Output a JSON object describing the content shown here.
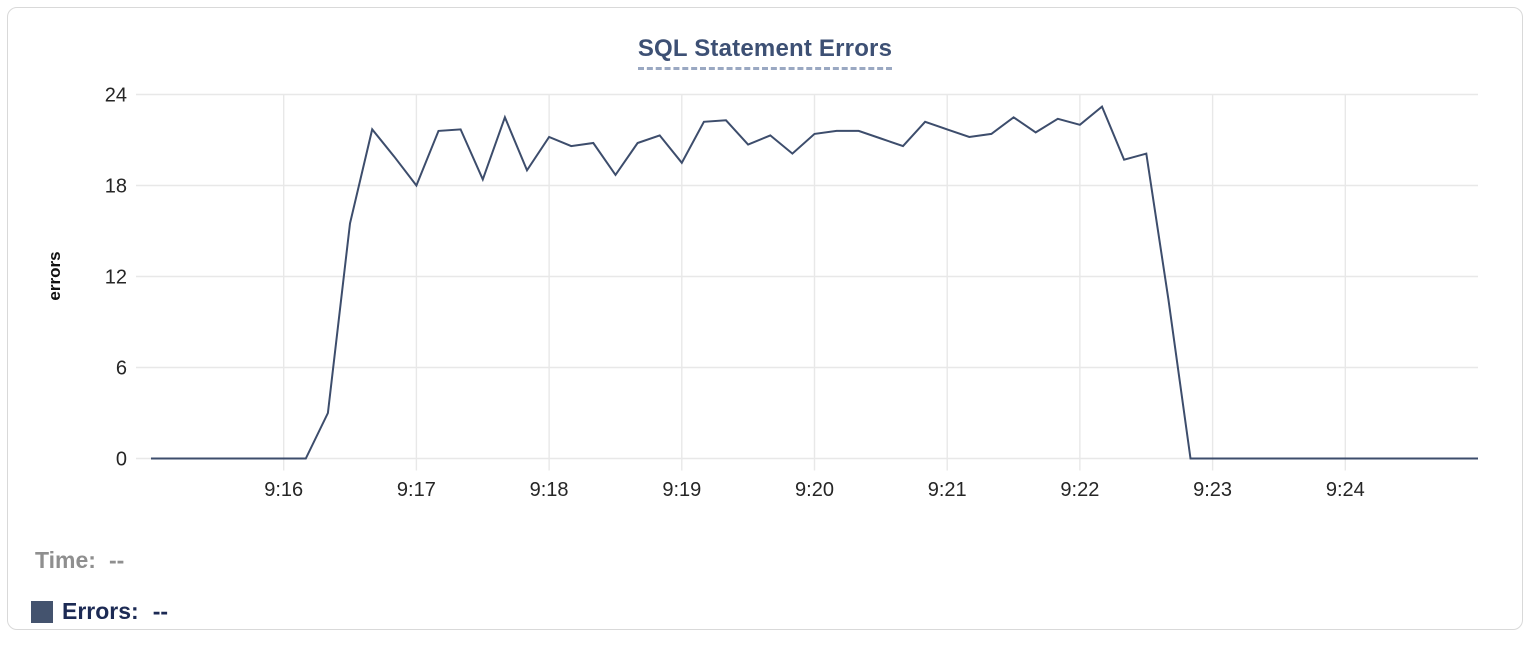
{
  "header": {
    "title": "SQL Statement Errors"
  },
  "readout": {
    "time_label": "Time:",
    "time_value": "--",
    "errors_label": "Errors:",
    "errors_value": "--"
  },
  "colors": {
    "line": "#3d4d6c",
    "title": "#3d5074",
    "title_underline": "#9aa8c2",
    "grid": "#e8e8e8",
    "axis_text": "#262626",
    "legend_time_text": "#8f8f8f",
    "legend_errors_text": "#1c2a54",
    "legend_swatch": "#44536e",
    "card_border": "#d9d9d9"
  },
  "chart_data": {
    "type": "line",
    "title": "SQL Statement Errors",
    "xlabel": "",
    "ylabel": "errors",
    "x_range": [
      "9:15:00",
      "9:25:00"
    ],
    "ylim": [
      0,
      24
    ],
    "y_ticks": [
      0,
      6,
      12,
      18,
      24
    ],
    "x_ticks": [
      "9:16",
      "9:17",
      "9:18",
      "9:19",
      "9:20",
      "9:21",
      "9:22",
      "9:23",
      "9:24"
    ],
    "grid": true,
    "legend_position": "bottom-left",
    "series": [
      {
        "name": "Errors",
        "color": "#3d4d6c",
        "points": [
          [
            "9:15:00",
            0
          ],
          [
            "9:15:10",
            0
          ],
          [
            "9:15:20",
            0
          ],
          [
            "9:15:30",
            0
          ],
          [
            "9:15:40",
            0
          ],
          [
            "9:15:50",
            0
          ],
          [
            "9:16:00",
            0
          ],
          [
            "9:16:10",
            0
          ],
          [
            "9:16:20",
            3
          ],
          [
            "9:16:30",
            15.5
          ],
          [
            "9:16:40",
            21.7
          ],
          [
            "9:16:50",
            19.9
          ],
          [
            "9:17:00",
            18
          ],
          [
            "9:17:10",
            21.6
          ],
          [
            "9:17:20",
            21.7
          ],
          [
            "9:17:30",
            18.4
          ],
          [
            "9:17:40",
            22.5
          ],
          [
            "9:17:50",
            19
          ],
          [
            "9:18:00",
            21.2
          ],
          [
            "9:18:10",
            20.6
          ],
          [
            "9:18:20",
            20.8
          ],
          [
            "9:18:30",
            18.7
          ],
          [
            "9:18:40",
            20.8
          ],
          [
            "9:18:50",
            21.3
          ],
          [
            "9:19:00",
            19.5
          ],
          [
            "9:19:10",
            22.2
          ],
          [
            "9:19:20",
            22.3
          ],
          [
            "9:19:30",
            20.7
          ],
          [
            "9:19:40",
            21.3
          ],
          [
            "9:19:50",
            20.1
          ],
          [
            "9:20:00",
            21.4
          ],
          [
            "9:20:10",
            21.6
          ],
          [
            "9:20:20",
            21.6
          ],
          [
            "9:20:30",
            21.1
          ],
          [
            "9:20:40",
            20.6
          ],
          [
            "9:20:50",
            22.2
          ],
          [
            "9:21:00",
            21.7
          ],
          [
            "9:21:10",
            21.2
          ],
          [
            "9:21:20",
            21.4
          ],
          [
            "9:21:30",
            22.5
          ],
          [
            "9:21:40",
            21.5
          ],
          [
            "9:21:50",
            22.4
          ],
          [
            "9:22:00",
            22
          ],
          [
            "9:22:10",
            23.2
          ],
          [
            "9:22:20",
            19.7
          ],
          [
            "9:22:30",
            20.1
          ],
          [
            "9:22:40",
            10.5
          ],
          [
            "9:22:50",
            0
          ],
          [
            "9:23:00",
            0
          ],
          [
            "9:23:10",
            0
          ],
          [
            "9:23:20",
            0
          ],
          [
            "9:23:30",
            0
          ],
          [
            "9:23:40",
            0
          ],
          [
            "9:23:50",
            0
          ],
          [
            "9:24:00",
            0
          ],
          [
            "9:24:10",
            0
          ],
          [
            "9:24:20",
            0
          ],
          [
            "9:24:30",
            0
          ],
          [
            "9:24:40",
            0
          ],
          [
            "9:24:50",
            0
          ],
          [
            "9:25:00",
            0
          ]
        ]
      }
    ]
  }
}
